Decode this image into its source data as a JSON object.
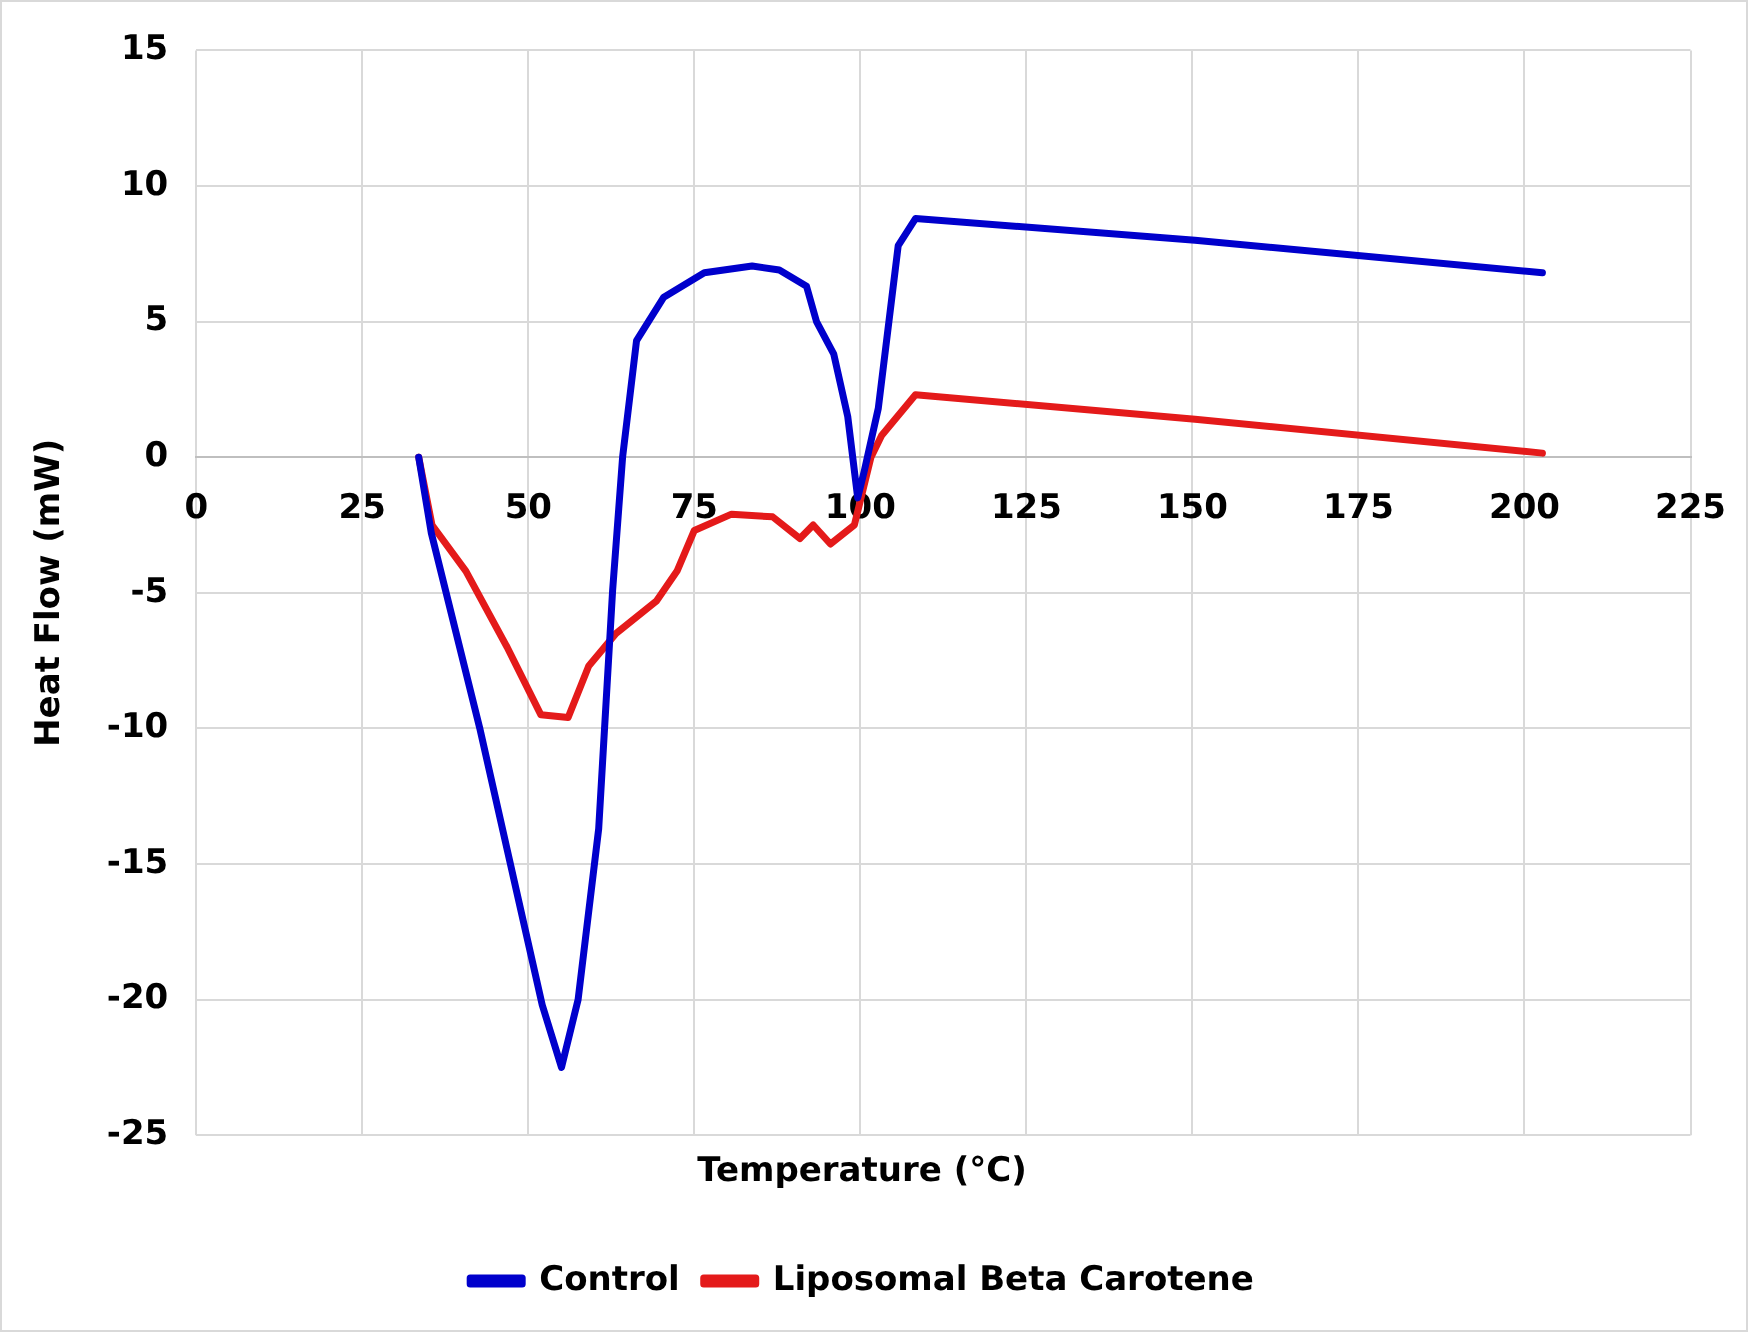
{
  "chart_data": {
    "type": "line",
    "xlabel": "Temperature (°C)",
    "ylabel": "Heat Flow (mW)",
    "xlim": [
      0,
      225
    ],
    "xticks": [
      0,
      25,
      50,
      75,
      100,
      125,
      150,
      175,
      200,
      225
    ],
    "ylim": [
      -25,
      15
    ],
    "yticks": [
      -25,
      -20,
      -15,
      -10,
      -5,
      0,
      5,
      10,
      15
    ],
    "grid": true,
    "legend": "bottom",
    "marker": "none",
    "line_style": "solid",
    "series": [
      {
        "name": "Control",
        "color": "#0000cc",
        "x": [
          33.5,
          35.4,
          42.7,
          52.1,
          55,
          57.5,
          60.6,
          62.7,
          64.2,
          66.3,
          70.4,
          76.5,
          83.7,
          87.8,
          91.9,
          93.4,
          96,
          98.1,
          99.6,
          100.6,
          102.7,
          105.7,
          108.3,
          150.4,
          202.7
        ],
        "values": [
          0,
          -2.8,
          -10,
          -20.2,
          -22.5,
          -20,
          -13.7,
          -4.9,
          0,
          4.3,
          5.9,
          6.8,
          7.05,
          6.9,
          6.3,
          5,
          3.8,
          1.5,
          -1.5,
          -0.5,
          1.8,
          7.8,
          8.8,
          8,
          6.8
        ]
      },
      {
        "name": "Liposomal Beta Carotene",
        "color": "#e41a1a",
        "x": [
          33.5,
          35.5,
          40.6,
          46.8,
          51.9,
          56,
          59.1,
          63.2,
          69.3,
          72.4,
          75,
          80.6,
          86.8,
          90.9,
          92.9,
          95.5,
          99.1,
          101.6,
          103.2,
          108.3,
          150.4,
          202.7
        ],
        "values": [
          0,
          -2.5,
          -4.2,
          -7,
          -9.5,
          -9.6,
          -7.7,
          -6.5,
          -5.3,
          -4.2,
          -2.7,
          -2.1,
          -2.2,
          -3,
          -2.5,
          -3.2,
          -2.5,
          0,
          0.8,
          2.3,
          1.4,
          0.15
        ]
      }
    ]
  }
}
